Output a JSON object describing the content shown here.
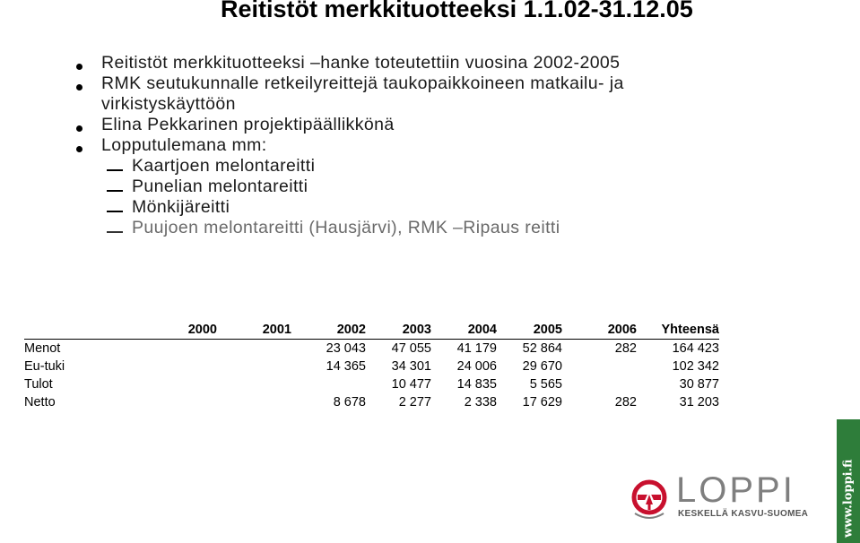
{
  "slide": {
    "title": "Reitistöt merkkituotteeksi 1.1.02-31.12.05",
    "bullets": [
      {
        "level": 1,
        "text": "Reitistöt merkkituotteeksi –hanke toteutettiin vuosina 2002-2005"
      },
      {
        "level": 1,
        "text": "RMK seutukunnalle retkeilyreittejä taukopaikkoineen matkailu- ja virkistyskäyttöön"
      },
      {
        "level": 1,
        "text": "Elina Pekkarinen projektipäällikkönä"
      },
      {
        "level": 1,
        "text": "Lopputulemana mm:"
      },
      {
        "level": 2,
        "text": "Kaartjoen melontareitti"
      },
      {
        "level": 2,
        "text": "Punelian melontareitti"
      },
      {
        "level": 2,
        "text": "Mönkijäreitti"
      },
      {
        "level": 2,
        "text": "Puujoen melontareitti (Hausjärvi), RMK –Ripaus reitti",
        "faded": true
      }
    ]
  },
  "table": {
    "columns": [
      "",
      "2000",
      "2001",
      "2002",
      "2003",
      "2004",
      "2005",
      "2006",
      "Yhteensä"
    ],
    "rows": [
      {
        "label": "Menot",
        "values": [
          "",
          "",
          "23 043",
          "47 055",
          "41 179",
          "52 864",
          "282",
          "164 423"
        ]
      },
      {
        "label": "Eu-tuki",
        "values": [
          "",
          "",
          "14 365",
          "34 301",
          "24 006",
          "29 670",
          "",
          "102 342"
        ]
      },
      {
        "label": "Tulot",
        "values": [
          "",
          "",
          "",
          "10 477",
          "14 835",
          "5 565",
          "",
          "30 877"
        ]
      },
      {
        "label": "Netto",
        "values": [
          "",
          "",
          "8 678",
          "2 277",
          "2 338",
          "17 629",
          "282",
          "31 203"
        ]
      }
    ]
  },
  "brand": {
    "wordmark": "LOPPI",
    "slogan": "KESKELLÄ KASVU-SUOMEA",
    "side_url": "www.loppi.fi",
    "colors": {
      "red": "#c8102e",
      "gray": "#7f7f7f",
      "green": "#2e7d3a"
    }
  }
}
